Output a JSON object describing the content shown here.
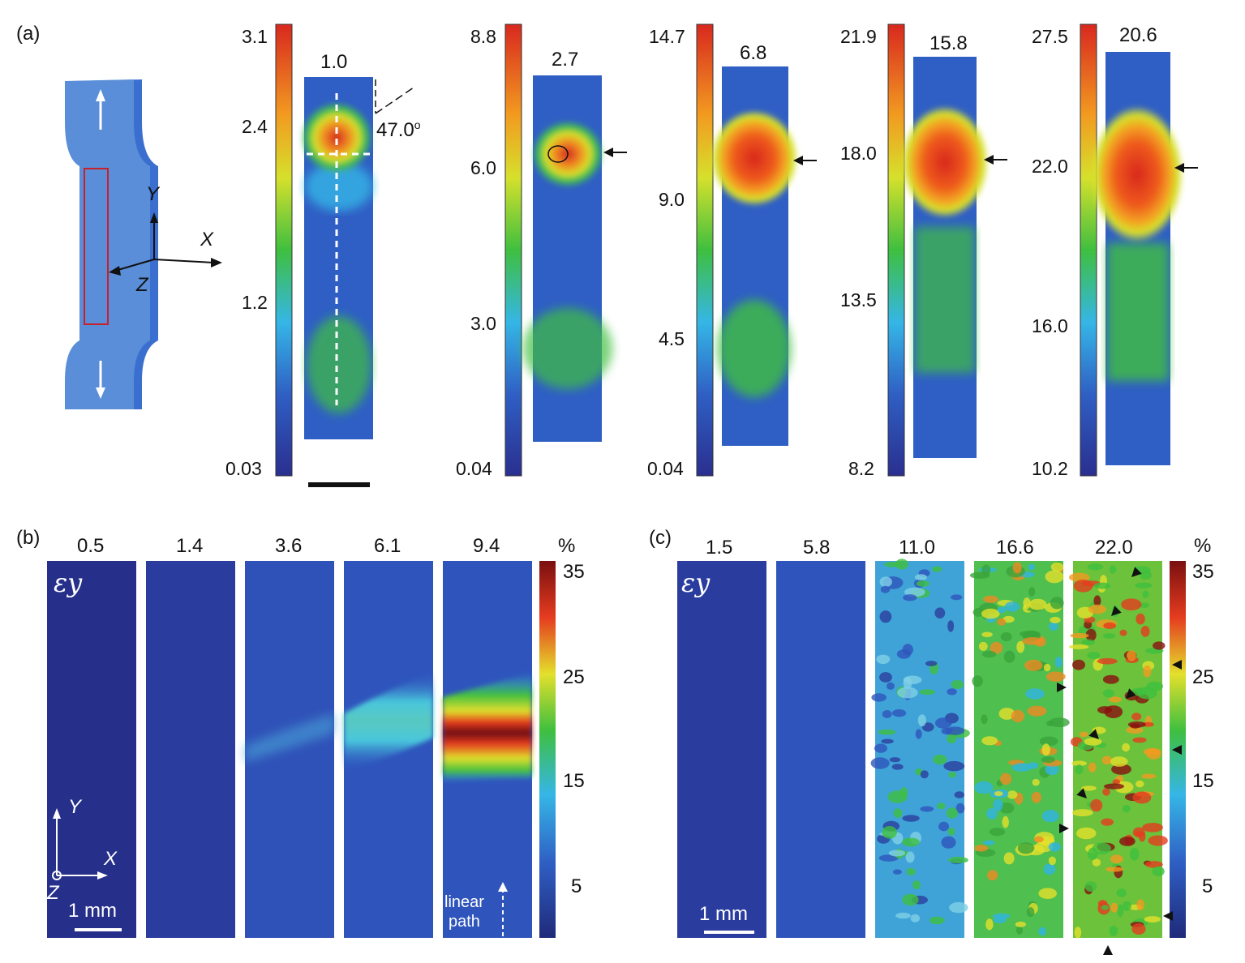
{
  "panels": {
    "a": {
      "label": "(a)",
      "axes": {
        "x": "X",
        "y": "Y",
        "z": "Z"
      },
      "angle": "47.0",
      "specimens": [
        {
          "strain": "1.0",
          "ticks": [
            "3.1",
            "2.4",
            "1.2",
            "0.03"
          ]
        },
        {
          "strain": "2.7",
          "ticks": [
            "8.8",
            "6.0",
            "3.0",
            "0.04"
          ]
        },
        {
          "strain": "6.8",
          "ticks": [
            "14.7",
            "9.0",
            "4.5",
            "0.04"
          ]
        },
        {
          "strain": "15.8",
          "ticks": [
            "21.9",
            "18.0",
            "13.5",
            "8.2"
          ]
        },
        {
          "strain": "20.6",
          "ticks": [
            "27.5",
            "22.0",
            "16.0",
            "10.2"
          ]
        }
      ]
    },
    "b": {
      "label": "(b)",
      "strains": [
        "0.5",
        "1.4",
        "3.6",
        "6.1",
        "9.4"
      ],
      "variable": "εy",
      "unit": "%",
      "colorbar_ticks": [
        "35",
        "25",
        "15",
        "5"
      ],
      "scale_bar": "1 mm",
      "path_label_1": "linear",
      "path_label_2": "path",
      "axes": {
        "x": "X",
        "y": "Y",
        "z": "Z"
      }
    },
    "c": {
      "label": "(c)",
      "strains": [
        "1.5",
        "5.8",
        "11.0",
        "16.6",
        "22.0"
      ],
      "variable": "εy",
      "unit": "%",
      "colorbar_ticks": [
        "35",
        "25",
        "15",
        "5"
      ],
      "scale_bar": "1 mm"
    }
  }
}
